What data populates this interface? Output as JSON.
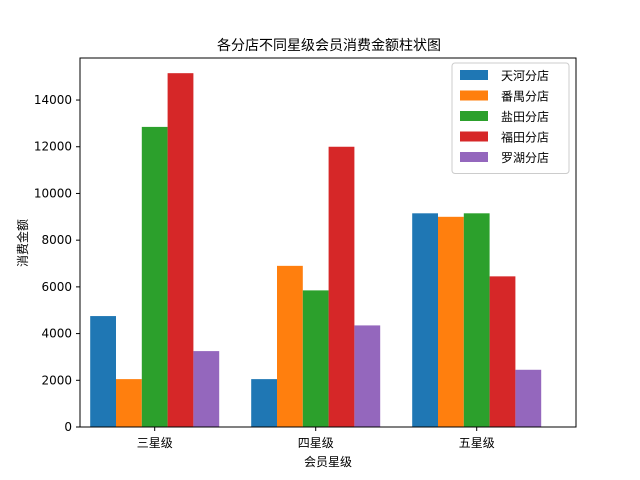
{
  "chart_data": {
    "type": "bar",
    "title": "各分店不同星级会员消费金额柱状图",
    "xlabel": "会员星级",
    "ylabel": "消费金额",
    "categories": [
      "三星级",
      "四星级",
      "五星级"
    ],
    "ylim": [
      0,
      15800
    ],
    "yticks": [
      0,
      2000,
      4000,
      6000,
      8000,
      10000,
      12000,
      14000
    ],
    "legend_position": "top-right",
    "grid": false,
    "series": [
      {
        "name": "天河分店",
        "color": "#1f77b4",
        "values": [
          4750,
          2050,
          9150
        ]
      },
      {
        "name": "番禺分店",
        "color": "#ff7f0e",
        "values": [
          2050,
          6900,
          9000
        ]
      },
      {
        "name": "盐田分店",
        "color": "#2ca02c",
        "values": [
          12850,
          5850,
          9150
        ]
      },
      {
        "name": "福田分店",
        "color": "#d62728",
        "values": [
          15150,
          12000,
          6450
        ]
      },
      {
        "name": "罗湖分店",
        "color": "#9467bd",
        "values": [
          3250,
          4350,
          2450
        ]
      }
    ]
  }
}
